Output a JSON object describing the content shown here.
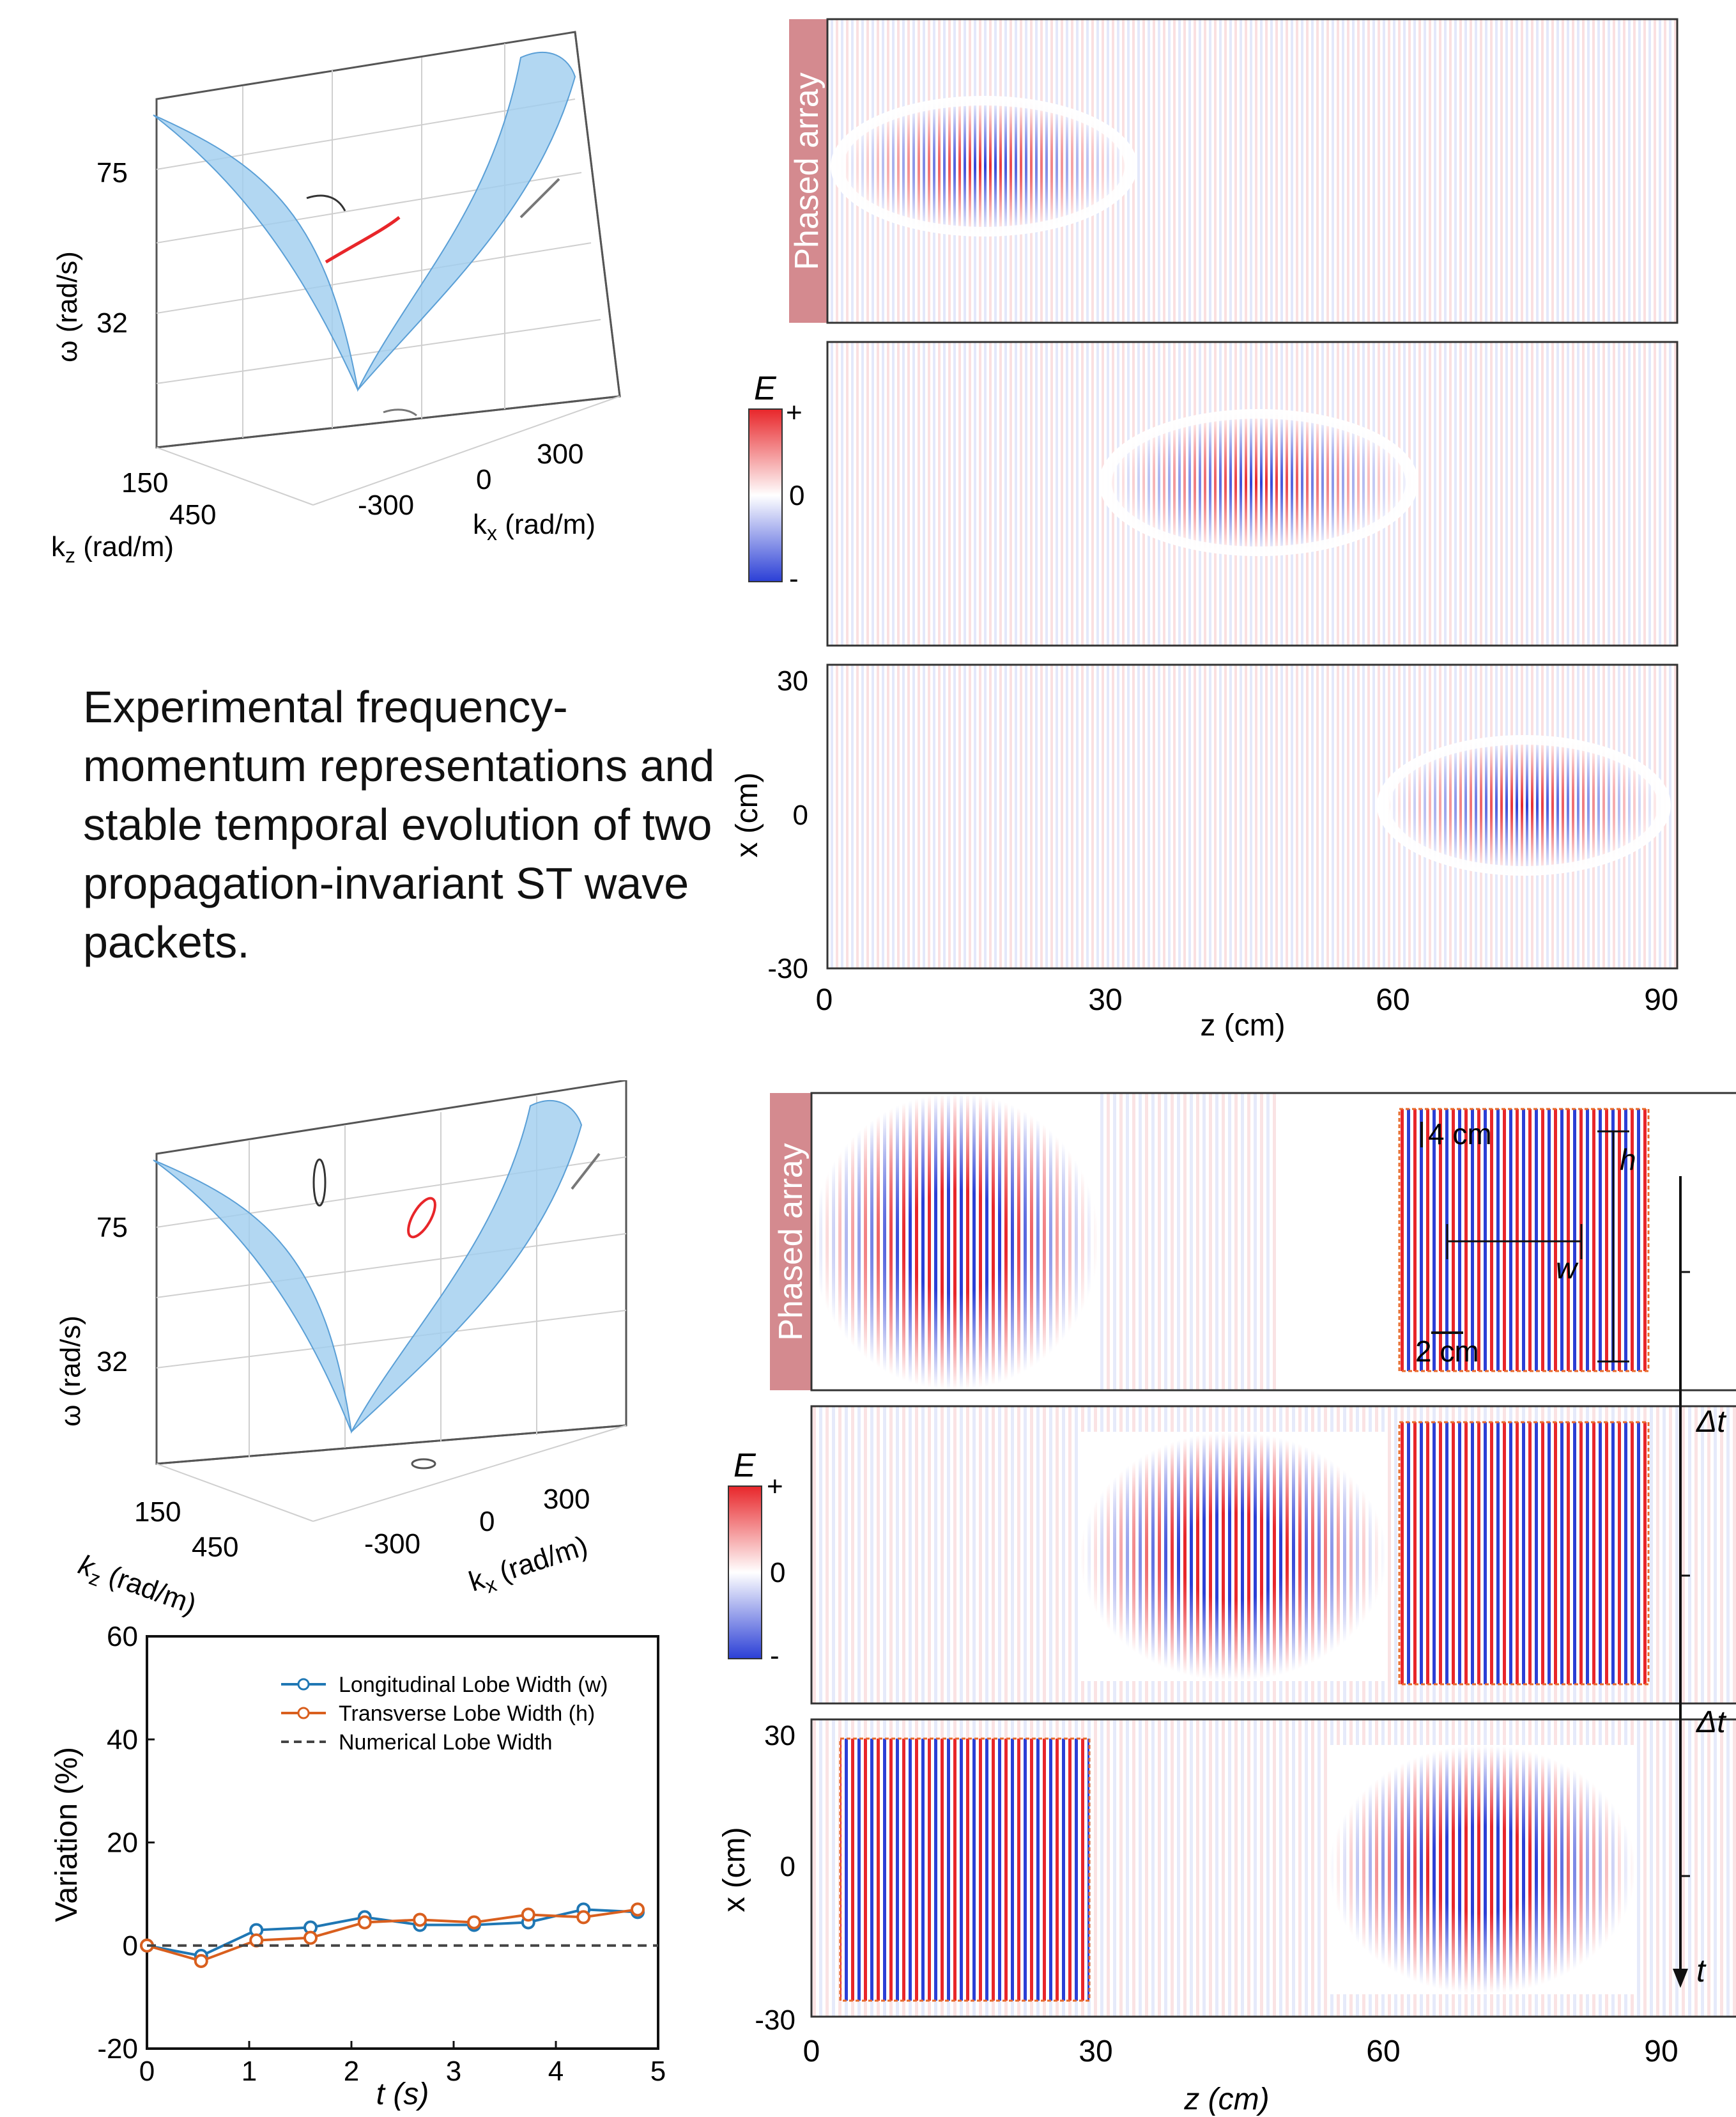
{
  "description": "Experimental frequency-momentum representations and stable temporal evolution of two propagation-invariant ST wave packets.",
  "surface_plot": {
    "omega_label": "ω (rad/s)",
    "omega_ticks": [
      "75",
      "32"
    ],
    "kz_label": "k",
    "kz_sub": "z",
    "kz_unit": " (rad/m)",
    "kz_ticks": [
      "150",
      "450"
    ],
    "kx_label": "k",
    "kx_sub": "x",
    "kx_unit": " (rad/m)",
    "kx_ticks": [
      "-300",
      "0",
      "300"
    ]
  },
  "field_panels": {
    "phased_array_label": "Phased array",
    "colorbar_title": "E",
    "colorbar_plus": "+",
    "colorbar_zero": "0",
    "colorbar_minus": "-",
    "x_axis_label": "x (cm)",
    "z_axis_label": "z (cm)",
    "x_ticks": [
      "30",
      "0",
      "-30"
    ],
    "z_ticks": [
      "0",
      "30",
      "60",
      "90"
    ]
  },
  "inset": {
    "scale_4cm": "4 cm",
    "scale_2cm": "2 cm",
    "h_label": "h",
    "w_label": "w"
  },
  "time_axis": {
    "dt1": "Δt",
    "dt2": "Δt",
    "t_label": "t"
  },
  "colors": {
    "surface": "#9fcdef",
    "pink_label": "#d48a8f",
    "red": "#e8262a",
    "blue": "#2b3fd6",
    "blue_series": "#1f77b4",
    "orange_series": "#d95f1e"
  },
  "chart_data": {
    "type": "line",
    "xlabel": "t (s)",
    "ylabel": "Variation (%)",
    "xlim": [
      0,
      5
    ],
    "ylim": [
      -20,
      60
    ],
    "x_ticks": [
      "0",
      "1",
      "2",
      "3",
      "4",
      "5"
    ],
    "y_ticks": [
      "60",
      "40",
      "20",
      "0",
      "-20"
    ],
    "legend_position": "top-right",
    "series": [
      {
        "name": "Longitudinal Lobe Width (w)",
        "color": "#1f77b4",
        "x": [
          0,
          0.53,
          1.07,
          1.6,
          2.13,
          2.67,
          3.2,
          3.73,
          4.27,
          4.8
        ],
        "y": [
          0,
          -2,
          3,
          3.5,
          5.5,
          4,
          4,
          4.5,
          7,
          6.5
        ]
      },
      {
        "name": "Transverse Lobe Width (h)",
        "color": "#d95f1e",
        "x": [
          0,
          0.53,
          1.07,
          1.6,
          2.13,
          2.67,
          3.2,
          3.73,
          4.27,
          4.8
        ],
        "y": [
          0,
          -3,
          1,
          1.5,
          4.5,
          5,
          4.5,
          6,
          5.5,
          7
        ]
      },
      {
        "name": "Numerical Lobe Width",
        "color": "#444444",
        "x": [
          0,
          5
        ],
        "y": [
          0,
          0
        ]
      }
    ]
  }
}
